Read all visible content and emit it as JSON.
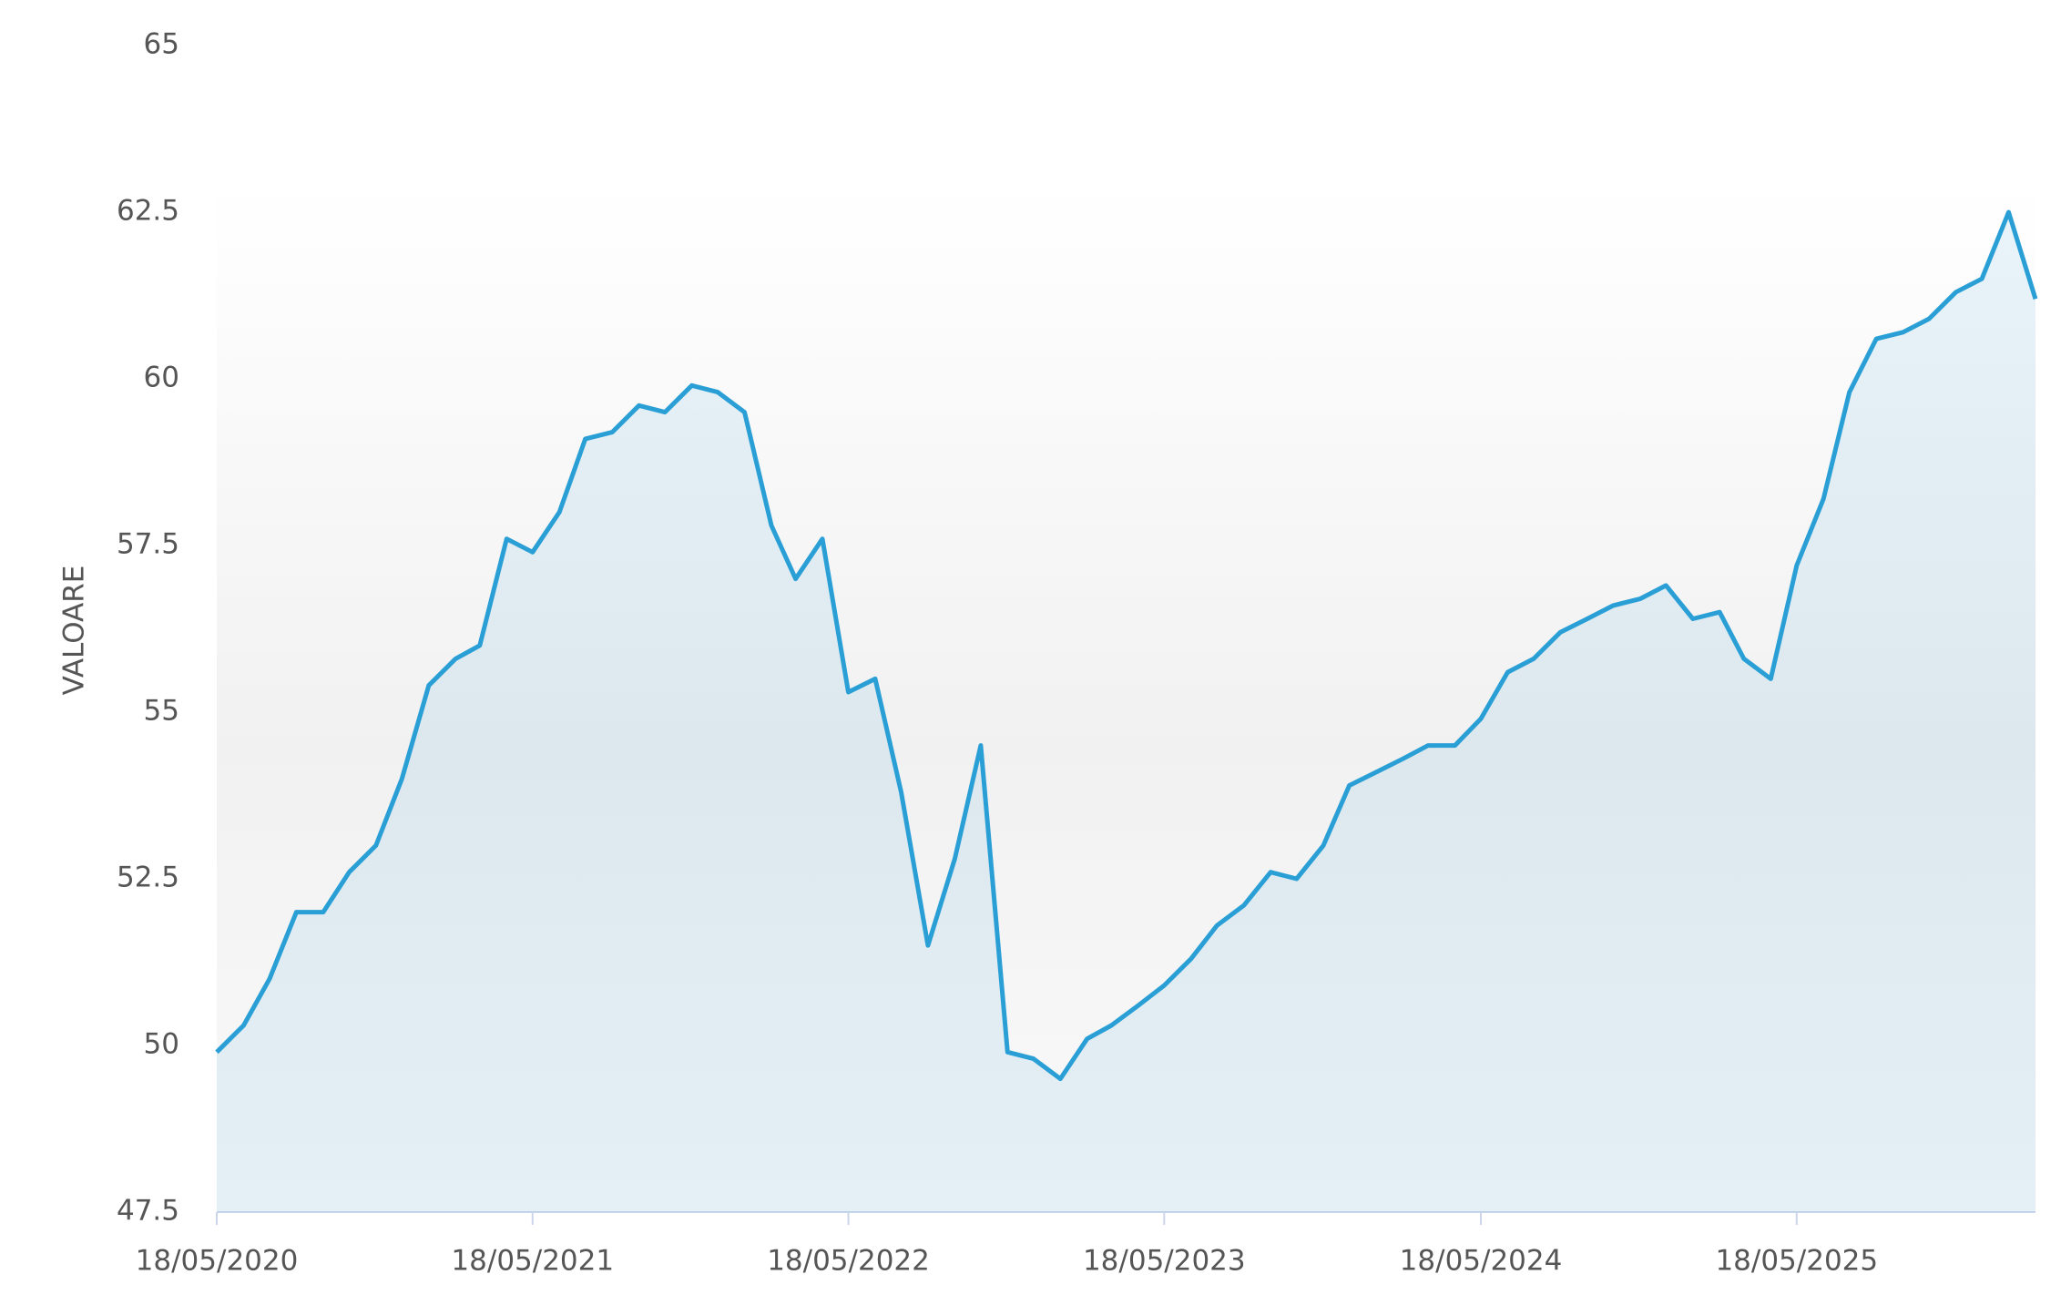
{
  "chart_data": {
    "type": "line",
    "y_label": "VALOARE",
    "x": [
      "18/05/2020",
      "18/06/2020",
      "18/07/2020",
      "18/08/2020",
      "18/09/2020",
      "18/10/2020",
      "18/11/2020",
      "18/12/2020",
      "18/01/2021",
      "18/02/2021",
      "18/03/2021",
      "18/04/2021",
      "18/05/2021",
      "18/06/2021",
      "18/07/2021",
      "18/08/2021",
      "18/09/2021",
      "18/10/2021",
      "18/11/2021",
      "18/12/2021",
      "18/01/2022",
      "18/02/2022",
      "18/03/2022",
      "18/04/2022",
      "18/05/2022",
      "18/06/2022",
      "18/07/2022",
      "18/08/2022",
      "18/09/2022",
      "18/10/2022",
      "18/11/2022",
      "18/12/2022",
      "18/01/2023",
      "18/02/2023",
      "18/03/2023",
      "18/04/2023",
      "18/05/2023",
      "18/06/2023",
      "18/07/2023",
      "18/08/2023",
      "18/09/2023",
      "18/10/2023",
      "18/11/2023",
      "18/12/2023",
      "18/01/2024",
      "18/02/2024",
      "18/03/2024",
      "18/04/2024",
      "18/05/2024",
      "18/06/2024",
      "18/07/2024",
      "18/08/2024",
      "18/09/2024",
      "18/10/2024",
      "18/11/2024",
      "18/12/2024",
      "18/01/2025",
      "18/02/2025",
      "18/03/2025",
      "18/04/2025",
      "18/05/2025",
      "18/06/2025",
      "18/07/2025",
      "18/08/2025",
      "18/09/2025",
      "18/10/2025",
      "18/11/2025",
      "18/12/2025",
      "18/01/2026",
      "18/02/2026"
    ],
    "series": [
      {
        "name": "VALOARE",
        "color": "#2a9fd6",
        "values": [
          49.9,
          50.3,
          51.0,
          52.0,
          52.0,
          52.6,
          53.0,
          54.0,
          55.4,
          55.8,
          56.0,
          57.6,
          57.4,
          58.0,
          59.1,
          59.2,
          59.6,
          59.5,
          59.9,
          59.8,
          59.5,
          57.8,
          57.0,
          57.6,
          55.3,
          55.5,
          53.8,
          51.5,
          52.8,
          54.5,
          49.9,
          49.8,
          49.5,
          50.1,
          50.3,
          50.6,
          50.9,
          51.3,
          51.8,
          52.1,
          52.6,
          52.5,
          53.0,
          53.9,
          54.1,
          54.3,
          54.5,
          54.5,
          54.9,
          55.6,
          55.8,
          56.2,
          56.4,
          56.6,
          56.7,
          56.9,
          56.4,
          56.5,
          55.8,
          55.5,
          57.2,
          58.2,
          59.8,
          60.6,
          60.7,
          60.9,
          61.3,
          61.5,
          62.5,
          61.2
        ]
      }
    ],
    "xlim": [
      "18/05/2020",
      "18/02/2026"
    ],
    "xticks": [
      "18/05/2020",
      "18/05/2021",
      "18/05/2022",
      "18/05/2023",
      "18/05/2024",
      "18/05/2025"
    ],
    "ylim": [
      47.5,
      65
    ],
    "yticks": [
      47.5,
      50,
      52.5,
      55,
      57.5,
      60,
      62.5,
      65
    ]
  }
}
